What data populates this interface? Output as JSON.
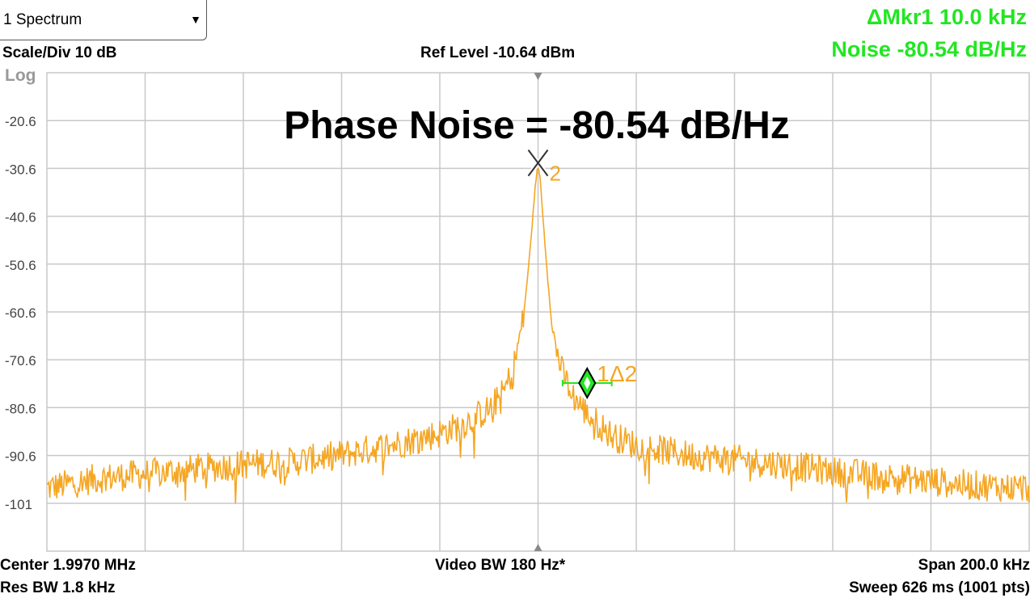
{
  "analyzer": {
    "trace_selector": {
      "value": "1 Spectrum",
      "arrow": "▼"
    },
    "scale_div": "Scale/Div 10 dB",
    "ref_level": "Ref Level -10.64 dBm",
    "scale_type": "Log",
    "marker_readout": {
      "delta_marker": "ΔMkr1  10.0 kHz",
      "noise": "Noise -80.54 dB/Hz"
    },
    "center": "Center 1.9970 MHz",
    "res_bw": "Res BW 1.8 kHz",
    "video_bw": "Video BW 180 Hz*",
    "span": "Span 200.0 kHz",
    "sweep": "Sweep 626 ms (1001 pts)"
  },
  "chart_data": {
    "type": "line",
    "title": "Phase Noise = -80.54 dB/Hz",
    "xlabel": "",
    "ylabel": "",
    "x_unit": "kHz offset from center",
    "xlim": [
      -100,
      100
    ],
    "ylim": [
      -110.64,
      -10.64
    ],
    "y_tick_labels": [
      "-20.6",
      "-30.6",
      "-40.6",
      "-50.6",
      "-60.6",
      "-70.6",
      "-80.6",
      "-90.6",
      "-101"
    ],
    "y_ticks": [
      -20.64,
      -30.64,
      -40.64,
      -50.64,
      -60.64,
      -70.64,
      -80.64,
      -90.64,
      -100.64
    ],
    "grid": true,
    "colors": {
      "trace": "#f5a623",
      "marker_delta": "#22e622",
      "grid": "#c8c8c8",
      "marker_ref": "#333333"
    },
    "series": [
      {
        "x": [
          -100,
          -90,
          -80,
          -70,
          -60,
          -50,
          -40,
          -30,
          -20,
          -15,
          -10,
          -7,
          -5,
          -3,
          -2,
          -1,
          -0.5,
          0,
          0.5,
          1,
          2,
          3,
          5,
          7,
          10,
          15,
          20,
          30,
          40,
          50,
          60,
          70,
          80,
          90,
          100
        ],
        "values": [
          -97.5,
          -95.5,
          -94.5,
          -93.5,
          -92.5,
          -92.0,
          -90.5,
          -88.5,
          -86.0,
          -84.0,
          -81.0,
          -77.5,
          -72.5,
          -62.0,
          -52.0,
          -40.0,
          -33.5,
          -29.5,
          -33.5,
          -41.0,
          -54.0,
          -65.5,
          -73.5,
          -78.0,
          -82.0,
          -86.5,
          -88.5,
          -90.5,
          -91.5,
          -92.5,
          -94.0,
          -95.0,
          -96.0,
          -97.0,
          -97.5
        ]
      }
    ],
    "markers": [
      {
        "label": "2",
        "x": 0,
        "y": -29.5,
        "symbol": "X"
      },
      {
        "label": "1Δ2",
        "x": 10,
        "y": -75.5,
        "symbol": "diamond",
        "band_kHz": [
          5,
          15
        ]
      }
    ]
  }
}
